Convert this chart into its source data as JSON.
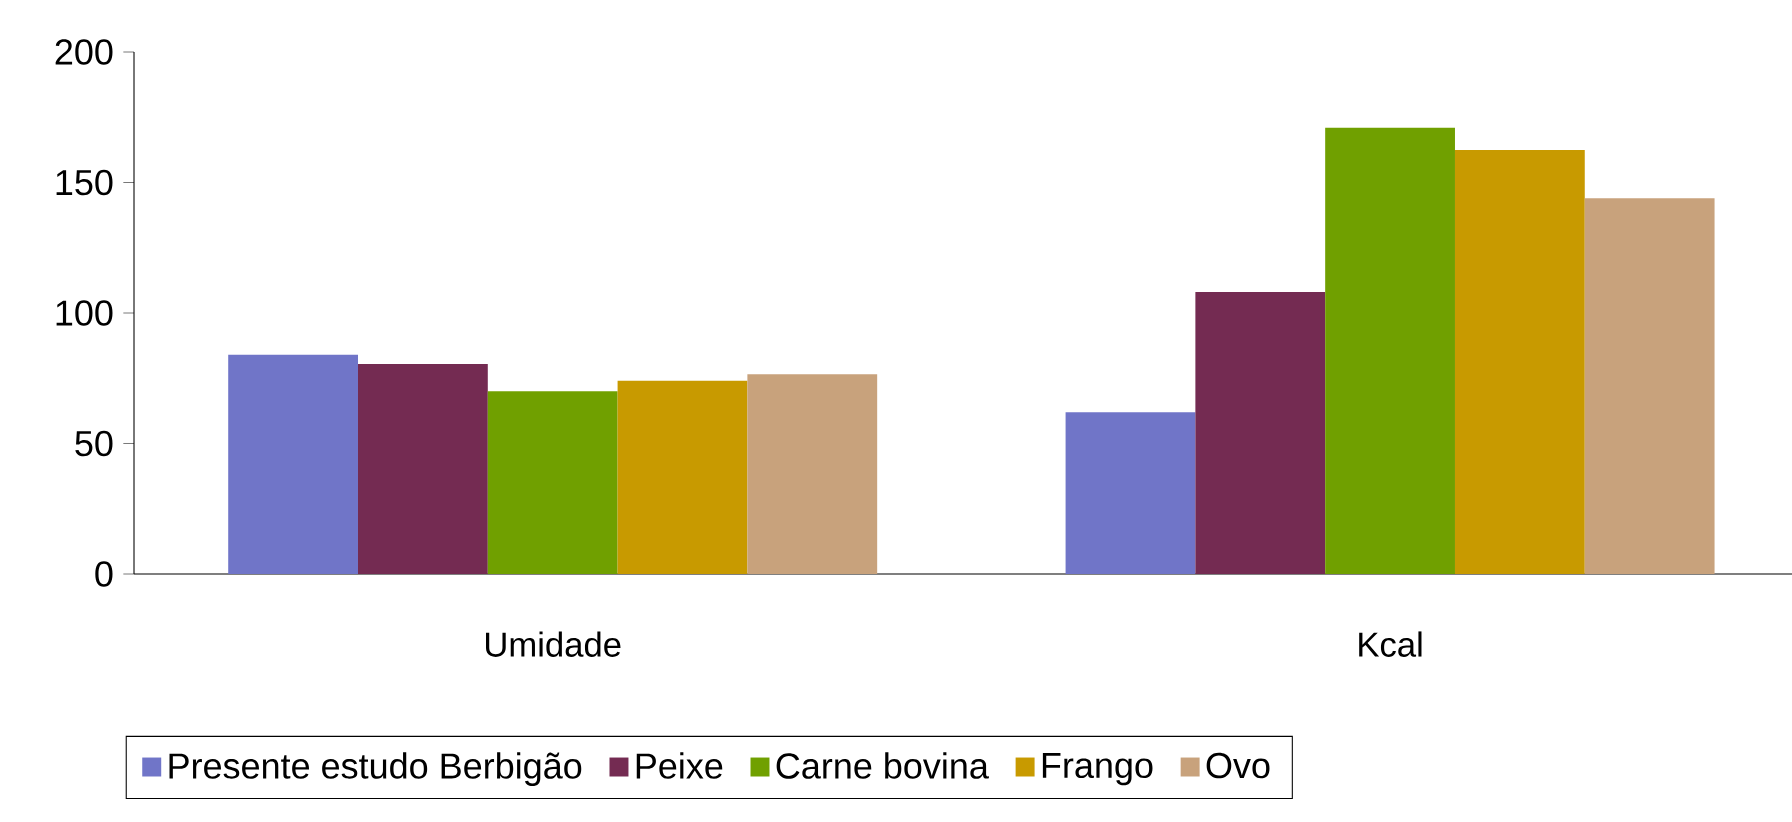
{
  "chart_data": {
    "type": "bar",
    "categories": [
      "Umidade",
      "Kcal"
    ],
    "series": [
      {
        "name": "Presente estudo Berbigão",
        "color": "#7075c8",
        "values": [
          84,
          62
        ]
      },
      {
        "name": "Peixe",
        "color": "#742b52",
        "values": [
          80.5,
          108
        ]
      },
      {
        "name": "Carne bovina",
        "color": "#70a000",
        "values": [
          70,
          171
        ]
      },
      {
        "name": "Frango",
        "color": "#c89a00",
        "values": [
          74,
          162.5
        ]
      },
      {
        "name": "Ovo",
        "color": "#c8a27c",
        "values": [
          76.5,
          144
        ]
      }
    ],
    "ylim": [
      0,
      200
    ],
    "yticks": [
      0,
      50,
      100,
      150,
      200
    ],
    "grid": false,
    "legend": "bottom"
  }
}
